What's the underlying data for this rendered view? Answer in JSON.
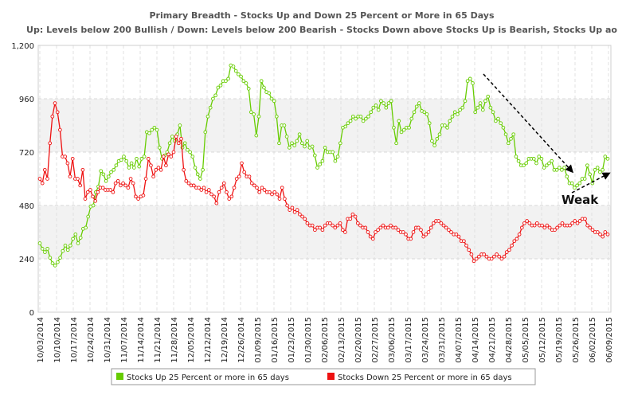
{
  "chart_data": {
    "type": "line",
    "title": "Primary Breadth - Stocks Up and Down 25 Percent or More in 65 Days",
    "subtitle": "Up: Levels below 200 Bullish / Down: Levels below 200 Bearish - Stocks Down above Stocks Up is Bearish, Stocks Up ao",
    "xlabel": "",
    "ylabel": "",
    "ylim": [
      0,
      1200
    ],
    "yticks": [
      "0",
      "240",
      "480",
      "720",
      "960",
      "1,200"
    ],
    "x_tick_labels": [
      "10/03/2014",
      "10/10/2014",
      "10/17/2014",
      "10/24/2014",
      "10/31/2014",
      "11/07/2014",
      "11/14/2014",
      "11/21/2014",
      "11/28/2014",
      "12/05/2014",
      "12/12/2014",
      "12/19/2014",
      "12/26/2014",
      "01/09/2015",
      "01/16/2015",
      "01/23/2015",
      "01/30/2015",
      "02/06/2015",
      "02/13/2015",
      "02/20/2015",
      "02/27/2015",
      "03/06/2015",
      "03/17/2015",
      "03/24/2015",
      "03/31/2015",
      "04/07/2015",
      "04/14/2015",
      "04/21/2015",
      "04/28/2015",
      "05/05/2015",
      "05/12/2015",
      "05/19/2015",
      "05/26/2015",
      "06/02/2015",
      "06/09/2015"
    ],
    "grid": true,
    "legend_position": "bottom",
    "series": [
      {
        "name": "Stocks Up 25 Percent or more in 65 days",
        "color": "#66cc00",
        "values": [
          310,
          285,
          270,
          285,
          245,
          220,
          210,
          225,
          245,
          275,
          300,
          280,
          300,
          330,
          350,
          310,
          335,
          375,
          380,
          430,
          475,
          480,
          540,
          565,
          635,
          620,
          590,
          610,
          630,
          640,
          660,
          680,
          685,
          700,
          680,
          650,
          670,
          650,
          690,
          655,
          690,
          700,
          810,
          805,
          820,
          830,
          820,
          740,
          690,
          705,
          720,
          760,
          790,
          770,
          800,
          840,
          740,
          760,
          730,
          720,
          700,
          650,
          620,
          600,
          640,
          810,
          880,
          920,
          960,
          975,
          1010,
          1020,
          1040,
          1040,
          1050,
          1110,
          1105,
          1085,
          1070,
          1060,
          1040,
          1030,
          1005,
          900,
          890,
          795,
          880,
          1040,
          1010,
          990,
          985,
          960,
          950,
          880,
          760,
          840,
          840,
          790,
          740,
          760,
          750,
          770,
          800,
          760,
          745,
          770,
          740,
          745,
          705,
          650,
          665,
          680,
          740,
          720,
          720,
          720,
          680,
          700,
          760,
          830,
          835,
          850,
          860,
          880,
          870,
          880,
          880,
          860,
          870,
          880,
          900,
          920,
          930,
          910,
          950,
          940,
          920,
          940,
          950,
          830,
          760,
          860,
          810,
          820,
          830,
          830,
          870,
          900,
          925,
          940,
          905,
          900,
          890,
          850,
          770,
          750,
          780,
          800,
          840,
          840,
          830,
          860,
          880,
          900,
          890,
          910,
          920,
          950,
          1040,
          1050,
          1030,
          900,
          920,
          940,
          910,
          950,
          970,
          920,
          900,
          860,
          870,
          850,
          830,
          800,
          760,
          780,
          800,
          700,
          680,
          660,
          660,
          670,
          690,
          690,
          690,
          670,
          700,
          690,
          650,
          660,
          670,
          680,
          640,
          640,
          650,
          640,
          650,
          610,
          580,
          580,
          560,
          570,
          580,
          600,
          600,
          660,
          620,
          580,
          640,
          650,
          630,
          640,
          700,
          690
        ]
      },
      {
        "name": "Stocks Down 25 Percent or more in 65 days",
        "color": "#ee1111",
        "values": [
          600,
          580,
          640,
          600,
          760,
          880,
          940,
          900,
          820,
          700,
          700,
          670,
          610,
          690,
          600,
          600,
          570,
          640,
          510,
          540,
          550,
          520,
          500,
          540,
          560,
          560,
          550,
          550,
          550,
          540,
          580,
          590,
          570,
          580,
          570,
          560,
          600,
          580,
          520,
          510,
          520,
          525,
          600,
          690,
          660,
          610,
          640,
          650,
          640,
          700,
          660,
          710,
          700,
          720,
          790,
          760,
          780,
          640,
          590,
          580,
          570,
          570,
          560,
          560,
          550,
          560,
          540,
          550,
          530,
          520,
          490,
          540,
          560,
          580,
          540,
          510,
          520,
          560,
          600,
          610,
          670,
          630,
          610,
          610,
          580,
          570,
          560,
          540,
          560,
          550,
          540,
          540,
          530,
          540,
          530,
          510,
          560,
          510,
          480,
          460,
          470,
          450,
          460,
          440,
          430,
          420,
          400,
          390,
          390,
          370,
          380,
          380,
          370,
          390,
          400,
          400,
          390,
          380,
          390,
          400,
          370,
          360,
          420,
          420,
          440,
          430,
          400,
          390,
          380,
          380,
          360,
          340,
          330,
          360,
          370,
          380,
          390,
          380,
          380,
          390,
          380,
          380,
          370,
          360,
          360,
          350,
          330,
          330,
          360,
          380,
          380,
          370,
          340,
          350,
          360,
          380,
          400,
          410,
          410,
          400,
          390,
          380,
          370,
          360,
          350,
          350,
          340,
          320,
          320,
          300,
          280,
          260,
          230,
          240,
          250,
          260,
          260,
          250,
          240,
          240,
          250,
          260,
          250,
          240,
          250,
          270,
          280,
          300,
          320,
          330,
          350,
          380,
          400,
          410,
          400,
          390,
          390,
          400,
          390,
          390,
          380,
          390,
          380,
          370,
          370,
          380,
          390,
          400,
          390,
          390,
          390,
          400,
          410,
          400,
          410,
          420,
          420,
          390,
          380,
          370,
          360,
          360,
          350,
          340,
          360,
          350
        ]
      }
    ],
    "annotations": [
      {
        "text": "Weak"
      }
    ]
  }
}
